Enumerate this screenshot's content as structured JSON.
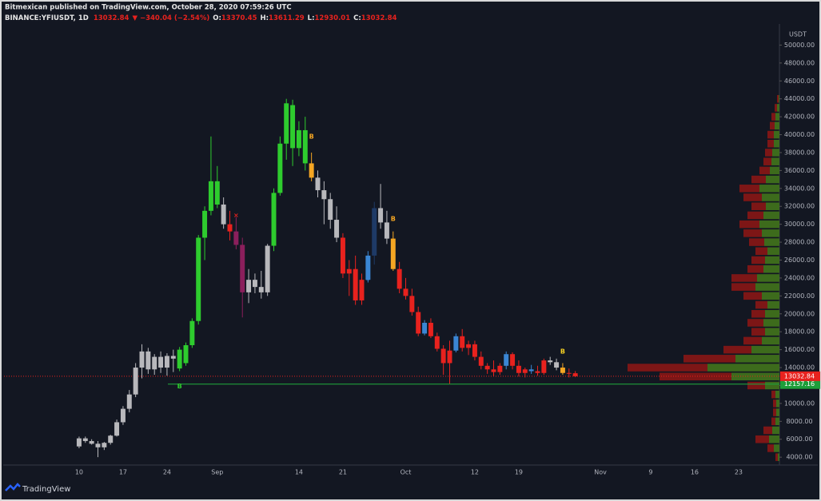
{
  "chart_data": {
    "type": "candlestick",
    "title": "Bitmexican published on TradingView.com, October 28, 2020 07:59:26 UTC",
    "symbol": "BINANCE:YFIUSDT, 1D",
    "change": "▼ −340.04 (−2.54%)",
    "ohlc_labels": [
      "O:",
      "H:",
      "L:",
      "C:"
    ],
    "currency": "USDT",
    "categories": [
      "10",
      null,
      null,
      null,
      null,
      null,
      null,
      "17",
      null,
      null,
      null,
      null,
      null,
      null,
      "24",
      null,
      null,
      null,
      null,
      null,
      null,
      null,
      "Sep",
      null,
      null,
      null,
      null,
      null,
      null,
      null,
      null,
      null,
      null,
      null,
      null,
      "14",
      null,
      null,
      null,
      null,
      null,
      null,
      "21",
      null,
      null,
      null,
      null,
      null,
      null,
      null,
      null,
      null,
      "Oct",
      null,
      null,
      null,
      null,
      null,
      null,
      null,
      null,
      null,
      null,
      "12",
      null,
      null,
      null,
      null,
      null,
      null,
      "19",
      null,
      null,
      null,
      null,
      null,
      null,
      null,
      null,
      null,
      null,
      null,
      null,
      "Nov",
      null,
      null,
      null,
      null,
      null,
      null,
      null,
      "9",
      null,
      null,
      null,
      null,
      null,
      null,
      "16",
      null,
      null,
      null,
      null,
      null,
      null,
      "23",
      null,
      null,
      null,
      null,
      null,
      null
    ],
    "open": [
      5200,
      6100,
      5800,
      5500,
      5100,
      5600,
      6400,
      7900,
      9400,
      11000,
      14000,
      15800,
      13800,
      15200,
      14000,
      15300,
      13900,
      14500,
      16500,
      19200,
      28500,
      31500,
      34800,
      32200,
      30000,
      29200,
      27700,
      22400,
      23800,
      23000,
      22400,
      27600,
      33500,
      39000,
      43300,
      38500,
      40500,
      36800,
      35200,
      33800,
      32800,
      30500,
      28500,
      24500,
      25000,
      21500,
      23800,
      26500,
      31800,
      30200,
      28400,
      25000,
      22800,
      22000,
      20200,
      17800,
      19000,
      17500,
      16100,
      14500,
      15900,
      17500,
      16200,
      16600,
      15200,
      14200,
      13800,
      13500,
      14200,
      15500,
      14200,
      13400,
      13800,
      13600,
      13400,
      14800,
      14600,
      14000,
      13400,
      13370.45,
      null,
      null,
      null,
      null,
      null,
      null,
      null,
      null,
      null,
      null,
      null,
      null,
      null,
      null,
      null,
      null,
      null,
      null,
      null,
      null,
      null,
      null,
      null,
      null,
      null,
      null,
      null,
      null,
      null,
      null,
      null,
      null
    ],
    "high": [
      6300,
      6300,
      6000,
      5800,
      5700,
      6500,
      8200,
      9700,
      11500,
      14500,
      16600,
      16200,
      15500,
      15800,
      15600,
      16000,
      16300,
      16800,
      19500,
      28800,
      32000,
      39800,
      36500,
      33000,
      31500,
      30800,
      28500,
      25000,
      24500,
      24800,
      27800,
      34000,
      39800,
      44000,
      43900,
      41500,
      42000,
      38000,
      36000,
      34800,
      33500,
      32000,
      29000,
      26000,
      26500,
      24500,
      27000,
      32500,
      34500,
      31500,
      29200,
      25800,
      24000,
      22800,
      20800,
      19300,
      19500,
      17900,
      16500,
      17000,
      17800,
      18300,
      17000,
      17000,
      15800,
      14500,
      14800,
      14500,
      15800,
      15700,
      14800,
      14000,
      14300,
      14200,
      15000,
      15200,
      15000,
      14500,
      13900,
      13611.29,
      null,
      null,
      null,
      null,
      null,
      null,
      null,
      null,
      null,
      null,
      null,
      null,
      null,
      null,
      null,
      null,
      null,
      null,
      null,
      null,
      null,
      null,
      null,
      null,
      null,
      null,
      null,
      null,
      null,
      null,
      null,
      null
    ],
    "low": [
      5000,
      5600,
      5400,
      4000,
      4800,
      5400,
      6300,
      7600,
      9000,
      10700,
      12800,
      13300,
      13200,
      13400,
      13100,
      13500,
      13600,
      14200,
      16200,
      18800,
      26000,
      31000,
      31800,
      29500,
      28200,
      27200,
      19600,
      21200,
      22300,
      21700,
      22000,
      27000,
      33200,
      37200,
      36500,
      37600,
      36000,
      34800,
      33000,
      30000,
      29500,
      28000,
      24000,
      22000,
      21000,
      21000,
      23500,
      25500,
      29500,
      27800,
      24800,
      22300,
      21600,
      19800,
      17500,
      17600,
      17300,
      15800,
      13200,
      12200,
      15700,
      15800,
      15400,
      14800,
      13800,
      13300,
      13000,
      13200,
      13800,
      13800,
      13000,
      12900,
      13300,
      13100,
      13200,
      14300,
      13700,
      13200,
      12900,
      12930.01,
      null,
      null,
      null,
      null,
      null,
      null,
      null,
      null,
      null,
      null,
      null,
      null,
      null,
      null,
      null,
      null,
      null,
      null,
      null,
      null,
      null,
      null,
      null,
      null,
      null,
      null,
      null,
      null,
      null,
      null,
      null,
      null
    ],
    "close": [
      6100,
      5800,
      5500,
      5100,
      5600,
      6400,
      7900,
      9400,
      11000,
      14000,
      15800,
      13800,
      15200,
      14000,
      15300,
      15000,
      16000,
      16500,
      19200,
      28500,
      31500,
      34800,
      32200,
      30000,
      29200,
      27700,
      22400,
      23800,
      23000,
      22400,
      27600,
      33500,
      39000,
      43500,
      38500,
      40500,
      36800,
      35200,
      33800,
      32800,
      30500,
      28500,
      24500,
      25000,
      21500,
      23800,
      26500,
      31800,
      30200,
      28400,
      25000,
      22800,
      22000,
      20200,
      17800,
      19000,
      17500,
      16100,
      14500,
      15900,
      17500,
      16200,
      16600,
      15200,
      14200,
      13800,
      13500,
      14200,
      15500,
      14200,
      13400,
      13800,
      13600,
      13400,
      14800,
      14600,
      14000,
      13400,
      13370.45,
      13032.84,
      null,
      null,
      null,
      null,
      null,
      null,
      null,
      null,
      null,
      null,
      null,
      null,
      null,
      null,
      null,
      null,
      null,
      null,
      null,
      null,
      null,
      null,
      null,
      null,
      null,
      null,
      null,
      null,
      null,
      null,
      null,
      null
    ],
    "colors": [
      "#b8b8bc",
      "#b8b8bc",
      "#b8b8bc",
      "#b8b8bc",
      "#b8b8bc",
      "#b8b8bc",
      "#b8b8bc",
      "#b8b8bc",
      "#b8b8bc",
      "#b8b8bc",
      "#b8b8bc",
      "#b8b8bc",
      "#b8b8bc",
      "#b8b8bc",
      "#b8b8bc",
      "#b8b8bc",
      "#2ecc2e",
      "#2ecc2e",
      "#2ecc2e",
      "#2ecc2e",
      "#2ecc2e",
      "#2ecc2e",
      "#2ecc2e",
      "#b8b8bc",
      "#e8221e",
      "#8b1f5c",
      "#8b1f5c",
      "#b8b8bc",
      "#b8b8bc",
      "#b8b8bc",
      "#b8b8bc",
      "#2ecc2e",
      "#2ecc2e",
      "#2ecc2e",
      "#2ecc2e",
      "#2ecc2e",
      "#2ecc2e",
      "#f5a623",
      "#b8b8bc",
      "#b8b8bc",
      "#b8b8bc",
      "#b8b8bc",
      "#e8221e",
      "#e8221e",
      "#e8221e",
      "#e8221e",
      "#3a86d4",
      "#1e3a66",
      "#b8b8bc",
      "#b8b8bc",
      "#f5a623",
      "#e8221e",
      "#e8221e",
      "#e8221e",
      "#e8221e",
      "#3a86d4",
      "#e8221e",
      "#e8221e",
      "#e8221e",
      "#e8221e",
      "#3a86d4",
      "#e8221e",
      "#e8221e",
      "#e8221e",
      "#e8221e",
      "#e8221e",
      "#e8221e",
      "#e8221e",
      "#3a86d4",
      "#e8221e",
      "#e8221e",
      "#e8221e",
      "#3a86d4",
      "#e8221e",
      "#e8221e",
      "#b8b8bc",
      "#b8b8bc",
      "#f5a623",
      "#e8221e",
      "#e8221e",
      null,
      null,
      null,
      null,
      null,
      null,
      null,
      null,
      null,
      null,
      null,
      null,
      null,
      null,
      null,
      null,
      null,
      null,
      null,
      null,
      null,
      null,
      null,
      null,
      null,
      null,
      null,
      null,
      null,
      null,
      null,
      null
    ],
    "ylim": [
      3300,
      52000
    ],
    "yticks": [
      {
        "value": 4000,
        "label": "4000.00"
      },
      {
        "value": 6000,
        "label": "6000.00"
      },
      {
        "value": 8000,
        "label": "8000.00"
      },
      {
        "value": 10000,
        "label": "10000.00"
      },
      {
        "value": 12000,
        "label": "12000.00"
      },
      {
        "value": 14000,
        "label": "14000.00"
      },
      {
        "value": 16000,
        "label": "16000.00"
      },
      {
        "value": 18000,
        "label": "18000.00"
      },
      {
        "value": 20000,
        "label": "20000.00"
      },
      {
        "value": 22000,
        "label": "22000.00"
      },
      {
        "value": 24000,
        "label": "24000.00"
      },
      {
        "value": 26000,
        "label": "26000.00"
      },
      {
        "value": 28000,
        "label": "28000.00"
      },
      {
        "value": 30000,
        "label": "30000.00"
      },
      {
        "value": 32000,
        "label": "32000.00"
      },
      {
        "value": 34000,
        "label": "34000.00"
      },
      {
        "value": 36000,
        "label": "36000.00"
      },
      {
        "value": 38000,
        "label": "38000.00"
      },
      {
        "value": 40000,
        "label": "40000.00"
      },
      {
        "value": 42000,
        "label": "42000.00"
      },
      {
        "value": 44000,
        "label": "44000.00"
      },
      {
        "value": 46000,
        "label": "46000.00"
      },
      {
        "value": 48000,
        "label": "48000.00"
      },
      {
        "value": 50000,
        "label": "50000.00"
      }
    ],
    "grid": false,
    "support_level": {
      "value": 12157.16,
      "color": "#1e9e3a"
    },
    "price_line_color": "#e8221e",
    "annotations": [
      {
        "text": "B",
        "index": 16,
        "value": 11900,
        "color": "#2ecc2e"
      },
      {
        "text": "B",
        "index": 37,
        "value": 39800,
        "color": "#f5a623"
      },
      {
        "text": "B",
        "index": 46,
        "value": 24000,
        "color": "#3a86d4"
      },
      {
        "text": "B",
        "index": 50,
        "value": 30600,
        "color": "#f5a623"
      },
      {
        "text": "B",
        "index": 77,
        "value": 15800,
        "color": "#f5d023"
      },
      {
        "text": "×",
        "index": 25,
        "value": 31000,
        "color": "#e8221e"
      }
    ],
    "volume_profile": {
      "levels": [
        4000,
        5000,
        6000,
        7000,
        8000,
        9000,
        10000,
        11000,
        12000,
        13000,
        14000,
        15000,
        16000,
        17000,
        18000,
        19000,
        20000,
        21000,
        22000,
        23000,
        24000,
        25000,
        26000,
        27000,
        28000,
        29000,
        30000,
        31000,
        32000,
        33000,
        34000,
        35000,
        36000,
        37000,
        38000,
        39000,
        40000,
        41000,
        42000,
        43000,
        44000
      ],
      "buy": [
        2,
        7,
        13,
        9,
        5,
        4,
        4,
        5,
        18,
        60,
        90,
        55,
        35,
        22,
        18,
        20,
        18,
        15,
        22,
        30,
        28,
        20,
        18,
        15,
        19,
        22,
        25,
        20,
        17,
        22,
        25,
        17,
        12,
        10,
        9,
        7,
        7,
        6,
        5,
        3,
        1
      ],
      "sell": [
        3,
        8,
        17,
        11,
        5,
        4,
        4,
        5,
        22,
        90,
        100,
        65,
        35,
        23,
        17,
        20,
        17,
        15,
        23,
        30,
        32,
        20,
        17,
        15,
        19,
        23,
        25,
        20,
        18,
        23,
        25,
        18,
        13,
        10,
        9,
        8,
        8,
        6,
        5,
        3,
        2
      ],
      "buy_color": "#3d6b1c",
      "sell_color": "#7d1616"
    }
  },
  "footer": {
    "brand": "TradingView"
  }
}
